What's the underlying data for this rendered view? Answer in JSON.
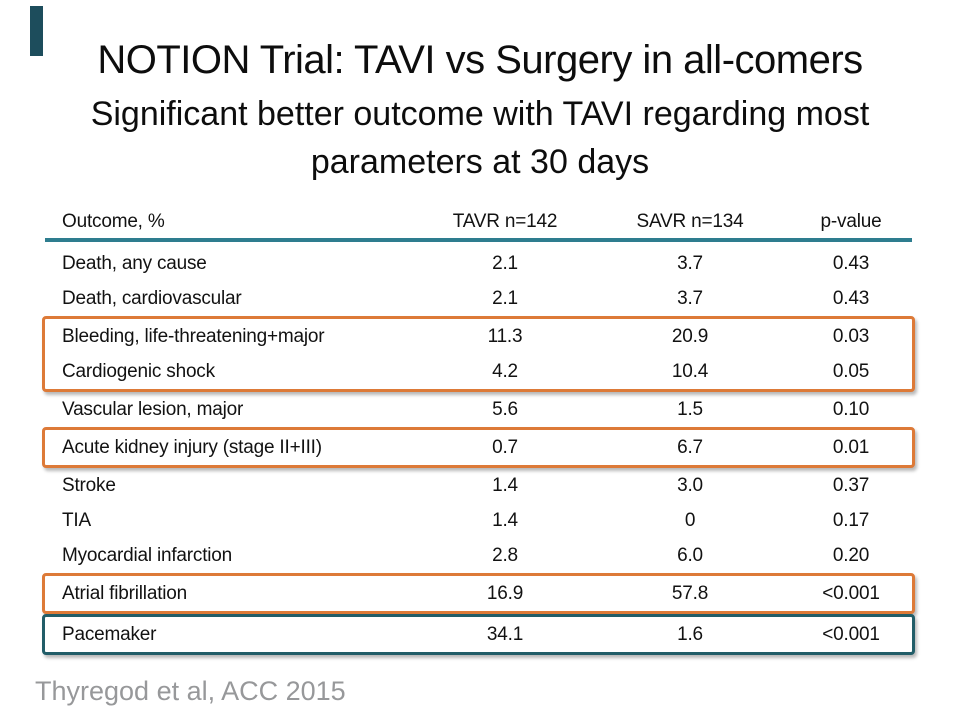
{
  "slide": {
    "title": "NOTION Trial: TAVI vs Surgery in all-comers",
    "subtitle_line1": "Significant better outcome with TAVI regarding most",
    "subtitle_line2": "parameters at 30 days",
    "citation": "Thyregod et al, ACC 2015"
  },
  "table": {
    "columns": [
      "Outcome, %",
      "TAVR n=142",
      "SAVR n=134",
      "p-value"
    ],
    "rows": [
      {
        "outcome": "Death, any cause",
        "tavr": "2.1",
        "savr": "3.7",
        "p": "0.43",
        "highlight": "none"
      },
      {
        "outcome": "Death, cardiovascular",
        "tavr": "2.1",
        "savr": "3.7",
        "p": "0.43",
        "highlight": "none"
      },
      {
        "outcome": "Bleeding, life-threatening+major",
        "tavr": "11.3",
        "savr": "20.9",
        "p": "0.03",
        "highlight": "orange"
      },
      {
        "outcome": "Cardiogenic shock",
        "tavr": "4.2",
        "savr": "10.4",
        "p": "0.05",
        "highlight": "orange"
      },
      {
        "outcome": "Vascular lesion, major",
        "tavr": "5.6",
        "savr": "1.5",
        "p": "0.10",
        "highlight": "none"
      },
      {
        "outcome": "Acute kidney injury (stage II+III)",
        "tavr": "0.7",
        "savr": "6.7",
        "p": "0.01",
        "highlight": "orange"
      },
      {
        "outcome": "Stroke",
        "tavr": "1.4",
        "savr": "3.0",
        "p": "0.37",
        "highlight": "none"
      },
      {
        "outcome": "TIA",
        "tavr": "1.4",
        "savr": "0",
        "p": "0.17",
        "highlight": "none"
      },
      {
        "outcome": "Myocardial infarction",
        "tavr": "2.8",
        "savr": "6.0",
        "p": "0.20",
        "highlight": "none"
      },
      {
        "outcome": "Atrial fibrillation",
        "tavr": "16.9",
        "savr": "57.8",
        "p": "<0.001",
        "highlight": "orange"
      },
      {
        "outcome": "Pacemaker",
        "tavr": "34.1",
        "savr": "1.6",
        "p": "<0.001",
        "highlight": "teal"
      }
    ]
  },
  "colors": {
    "highlight_orange": "#DD7A38",
    "highlight_teal": "#215D68",
    "header_rule_teal": "#2E7D8F",
    "accent_bar": "#1D4D5C",
    "citation_gray": "#97989A",
    "text_black": "#121212"
  }
}
